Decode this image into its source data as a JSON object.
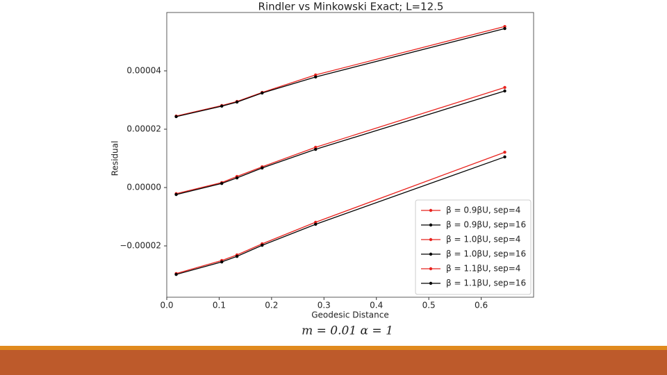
{
  "chart_data": {
    "type": "line",
    "title": "Rindler vs Minkowski Exact; L=12.5",
    "x_label": "Geodesic Distance",
    "y_label": "Residual",
    "annotation": "m = 0.01  α = 1",
    "x": [
      0.018,
      0.105,
      0.134,
      0.182,
      0.284,
      0.645
    ],
    "series": [
      {
        "name": "β = 0.9βU, sep=4",
        "color": "#e8231e",
        "values": [
          2.45e-05,
          2.81e-05,
          2.95e-05,
          3.26e-05,
          3.86e-05,
          5.52e-05
        ]
      },
      {
        "name": "β = 0.9βU, sep=16",
        "color": "#000000",
        "values": [
          2.43e-05,
          2.79e-05,
          2.93e-05,
          3.24e-05,
          3.79e-05,
          5.45e-05
        ]
      },
      {
        "name": "β = 1.0βU, sep=4",
        "color": "#e8231e",
        "values": [
          -2.1e-06,
          1.7e-06,
          3.8e-06,
          7.1e-06,
          1.38e-05,
          3.43e-05
        ]
      },
      {
        "name": "β = 1.0βU, sep=16",
        "color": "#000000",
        "values": [
          -2.4e-06,
          1.4e-06,
          3.3e-06,
          6.7e-06,
          1.31e-05,
          3.31e-05
        ]
      },
      {
        "name": "β = 1.1βU, sep=4",
        "color": "#e8231e",
        "values": [
          -2.95e-05,
          -2.5e-05,
          -2.31e-05,
          -1.93e-05,
          -1.19e-05,
          1.21e-05
        ]
      },
      {
        "name": "β = 1.1βU, sep=16",
        "color": "#000000",
        "values": [
          -2.98e-05,
          -2.55e-05,
          -2.36e-05,
          -1.98e-05,
          -1.26e-05,
          1.05e-05
        ]
      }
    ],
    "xlim": [
      0,
      0.7
    ],
    "ylim": [
      -3.76e-05,
      6e-05
    ],
    "xticks": [
      {
        "value": 0,
        "label": "0.0"
      },
      {
        "value": 0.1,
        "label": "0.1"
      },
      {
        "value": 0.2,
        "label": "0.2"
      },
      {
        "value": 0.3,
        "label": "0.3"
      },
      {
        "value": 0.4,
        "label": "0.4"
      },
      {
        "value": 0.5,
        "label": "0.5"
      },
      {
        "value": 0.6,
        "label": "0.6"
      }
    ],
    "yticks": [
      {
        "value": -2e-05,
        "label": "−0.00002"
      },
      {
        "value": 0,
        "label": "0.00000"
      },
      {
        "value": 2e-05,
        "label": "0.00002"
      },
      {
        "value": 4e-05,
        "label": "0.00004"
      }
    ],
    "legend": "lower right",
    "grid": false
  }
}
